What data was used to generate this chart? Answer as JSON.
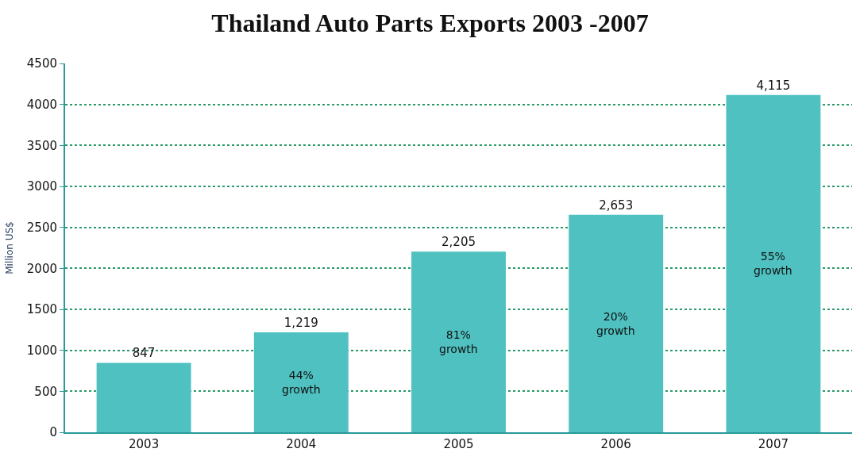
{
  "chart_data": {
    "type": "bar",
    "title": "Thailand Auto Parts Exports 2003 -2007",
    "ylabel": "Million US$",
    "categories": [
      "2003",
      "2004",
      "2005",
      "2006",
      "2007"
    ],
    "values": [
      847,
      1219,
      2205,
      2653,
      4115
    ],
    "value_labels": [
      "847",
      "1,219",
      "2,205",
      "2,653",
      "4,115"
    ],
    "color": "#4fc1c1",
    "ylim": [
      0,
      4500
    ],
    "yticks": [
      0,
      500,
      1000,
      1500,
      2000,
      2500,
      3000,
      3500,
      4000,
      4500
    ],
    "grid": "y",
    "legend": false,
    "annotations": [
      "44% growth",
      "81% growth",
      "20% growth",
      "55% growth"
    ]
  }
}
